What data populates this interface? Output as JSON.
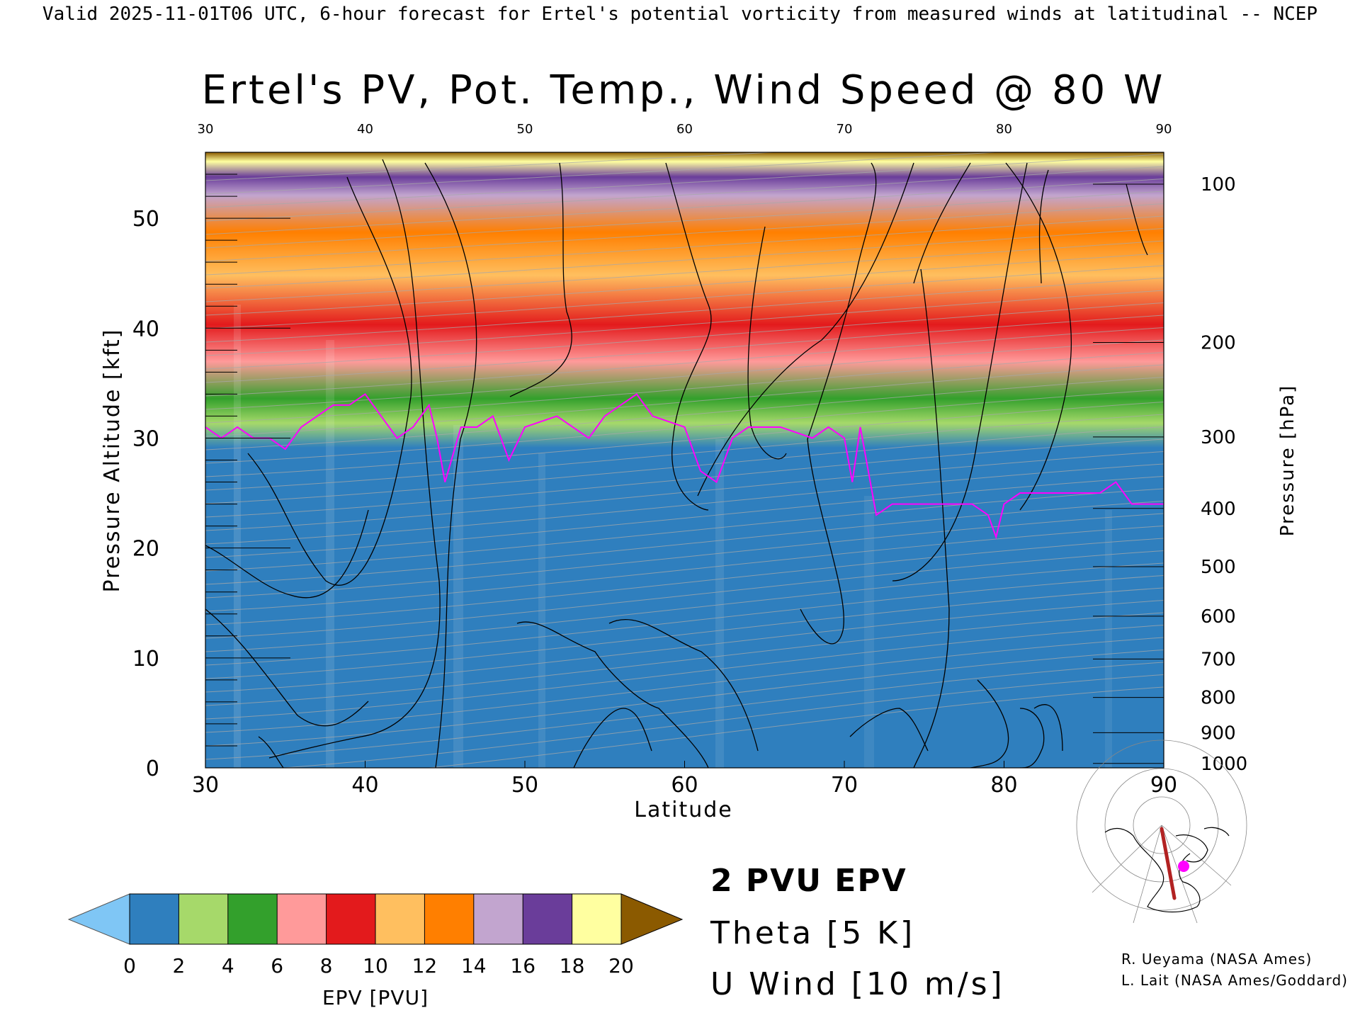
{
  "header": "Valid 2025-11-01T06 UTC, 6-hour forecast for Ertel's potential vorticity from measured winds at latitudinal -- NCEP",
  "chart_data": {
    "type": "heatmap",
    "title": "Ertel's PV, Pot. Temp., Wind Speed @ 80 W",
    "xlabel": "Latitude",
    "ylabel": "Pressure Altitude [kft]",
    "y2label": "Pressure [hPa]",
    "xlim": [
      30,
      90
    ],
    "ylim": [
      0,
      56
    ],
    "x_ticks": [
      "30",
      "40",
      "50",
      "60",
      "70",
      "80",
      "90"
    ],
    "y_ticks": [
      "0",
      "10",
      "20",
      "30",
      "40",
      "50"
    ],
    "pressure_ticks": [
      {
        "hpa": "100",
        "kft": 53.1
      },
      {
        "hpa": "200",
        "kft": 38.7
      },
      {
        "hpa": "300",
        "kft": 30.1
      },
      {
        "hpa": "400",
        "kft": 23.6
      },
      {
        "hpa": "500",
        "kft": 18.3
      },
      {
        "hpa": "600",
        "kft": 13.8
      },
      {
        "hpa": "700",
        "kft": 9.9
      },
      {
        "hpa": "800",
        "kft": 6.4
      },
      {
        "hpa": "900",
        "kft": 3.2
      },
      {
        "hpa": "1000",
        "kft": 0.4
      }
    ],
    "colorbar": {
      "label": "EPV [PVU]",
      "ticks": [
        "0",
        "2",
        "4",
        "6",
        "8",
        "10",
        "12",
        "14",
        "16",
        "18",
        "20"
      ],
      "colors": [
        "#2f7fbe",
        "#a6d96a",
        "#33a02c",
        "#ff9a9a",
        "#e31a1c",
        "#ffbf5f",
        "#ff7f00",
        "#c2a5cf",
        "#6a3d9a",
        "#ffffa0"
      ],
      "under_color": "#7fc6f5",
      "over_color": "#8b5a00"
    },
    "dynamic_tropopause_2pvu_kft": [
      [
        30,
        31
      ],
      [
        31,
        30
      ],
      [
        32,
        31
      ],
      [
        33,
        30
      ],
      [
        34,
        30
      ],
      [
        35,
        29
      ],
      [
        36,
        31
      ],
      [
        38,
        33
      ],
      [
        39,
        33
      ],
      [
        40,
        34
      ],
      [
        41,
        32
      ],
      [
        42,
        30
      ],
      [
        43,
        31
      ],
      [
        44,
        33
      ],
      [
        44.5,
        30
      ],
      [
        45,
        26
      ],
      [
        46,
        31
      ],
      [
        47,
        31
      ],
      [
        48,
        32
      ],
      [
        49,
        28
      ],
      [
        50,
        31
      ],
      [
        52,
        32
      ],
      [
        54,
        30
      ],
      [
        55,
        32
      ],
      [
        57,
        34
      ],
      [
        58,
        32
      ],
      [
        60,
        31
      ],
      [
        61,
        27
      ],
      [
        62,
        26
      ],
      [
        63,
        30
      ],
      [
        64,
        31
      ],
      [
        66,
        31
      ],
      [
        68,
        30
      ],
      [
        69,
        31
      ],
      [
        70,
        30
      ],
      [
        70.5,
        26
      ],
      [
        71,
        31
      ],
      [
        71.5,
        27
      ],
      [
        72,
        23
      ],
      [
        73,
        24
      ],
      [
        78,
        24
      ],
      [
        79,
        23
      ],
      [
        79.5,
        21
      ],
      [
        80,
        24
      ],
      [
        81,
        25
      ],
      [
        86,
        25
      ],
      [
        87,
        26
      ],
      [
        88,
        24
      ],
      [
        90,
        24
      ]
    ],
    "series": [
      {
        "name": "2 PVU EPV",
        "color": "#ff00ff"
      },
      {
        "name": "Theta [5 K]",
        "color": "#a8a8a8"
      },
      {
        "name": "U Wind [10 m/s]",
        "color": "#000000"
      }
    ],
    "inset_color": "#ff00ff",
    "inset_path_color": "#b22222"
  },
  "credits": [
    "R. Ueyama (NASA Ames)",
    "L. Lait (NASA Ames/Goddard)"
  ]
}
